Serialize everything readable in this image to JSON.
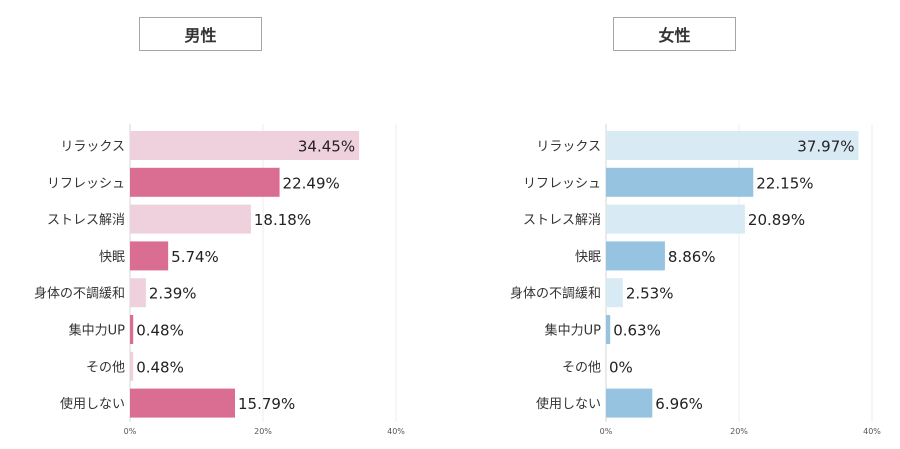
{
  "chart_data": [
    {
      "type": "bar",
      "orientation": "horizontal",
      "title": "男性",
      "categories": [
        "リラックス",
        "リフレッシュ",
        "ストレス解消",
        "快眠",
        "身体の不調緩和",
        "集中力UP",
        "その他",
        "使用しない"
      ],
      "values": [
        34.45,
        22.49,
        18.18,
        5.74,
        2.39,
        0.48,
        0.48,
        15.79
      ],
      "value_labels": [
        "34.45%",
        "22.49%",
        "18.18%",
        "5.74%",
        "2.39%",
        "0.48%",
        "0.48%",
        "15.79%"
      ],
      "highlight": [
        false,
        true,
        false,
        true,
        false,
        true,
        false,
        true
      ],
      "x_ticks": [
        "0%",
        "20%",
        "40%"
      ],
      "xlim": [
        0,
        40
      ],
      "colors": {
        "light": "#efd0dd",
        "dark": "#d96d92"
      }
    },
    {
      "type": "bar",
      "orientation": "horizontal",
      "title": "女性",
      "categories": [
        "リラックス",
        "リフレッシュ",
        "ストレス解消",
        "快眠",
        "身体の不調緩和",
        "集中力UP",
        "その他",
        "使用しない"
      ],
      "values": [
        37.97,
        22.15,
        20.89,
        8.86,
        2.53,
        0.63,
        0,
        6.96
      ],
      "value_labels": [
        "37.97%",
        "22.15%",
        "20.89%",
        "8.86%",
        "2.53%",
        "0.63%",
        "0%",
        "6.96%"
      ],
      "highlight": [
        false,
        true,
        false,
        true,
        false,
        true,
        false,
        true
      ],
      "x_ticks": [
        "0%",
        "20%",
        "40%"
      ],
      "xlim": [
        0,
        40
      ],
      "colors": {
        "light": "#d8eaf4",
        "dark": "#96c4e0"
      }
    }
  ]
}
